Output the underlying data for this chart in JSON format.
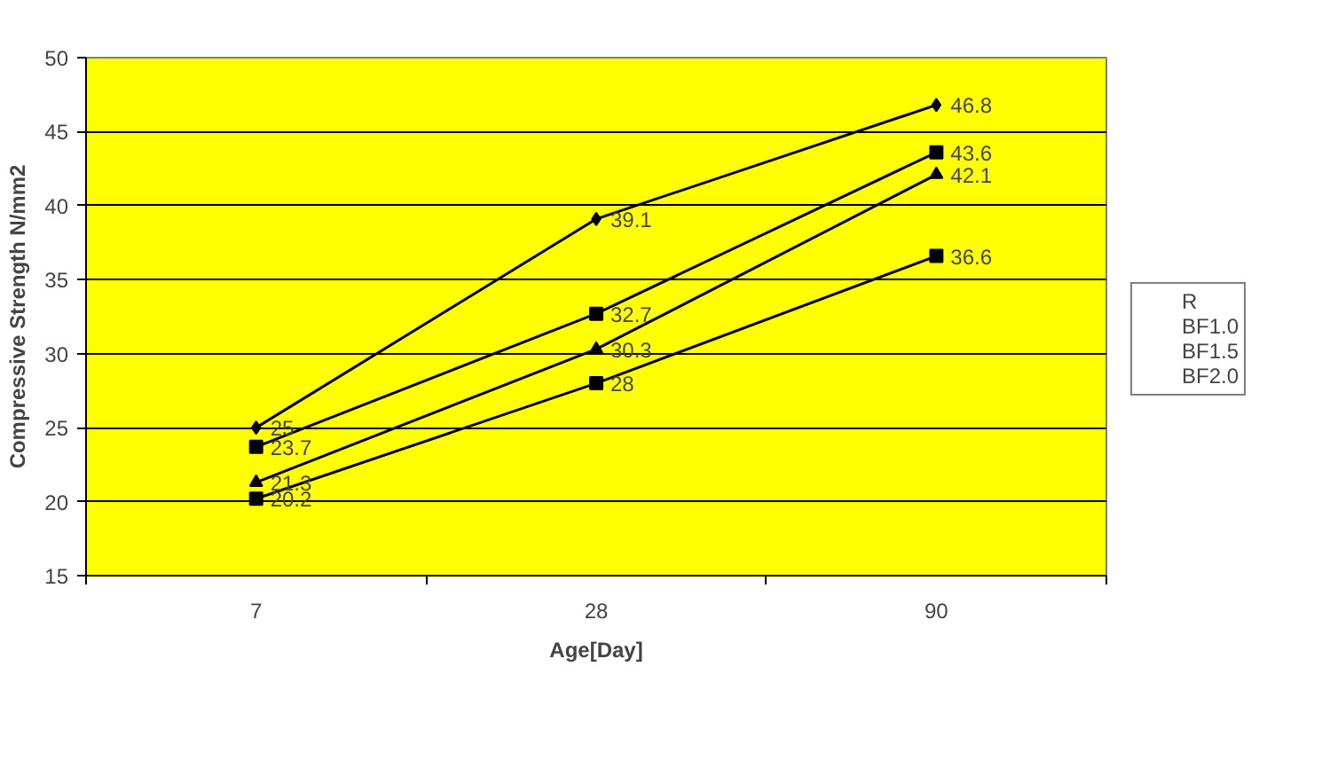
{
  "chart_data": {
    "type": "line",
    "xlabel": "Age[Day]",
    "ylabel": "Compressive Strength N/mm2",
    "categories": [
      "7",
      "28",
      "90"
    ],
    "series": [
      {
        "name": "R",
        "color": "#000000",
        "marker": "diamond",
        "values": [
          25,
          39.1,
          46.8
        ]
      },
      {
        "name": "BF1.0",
        "color": "#000000",
        "marker": "square",
        "values": [
          23.7,
          32.7,
          43.6
        ]
      },
      {
        "name": "BF1.5",
        "color": "#000000",
        "marker": "triangle",
        "values": [
          21.3,
          30.3,
          42.1
        ]
      },
      {
        "name": "BF2.0",
        "color": "#000000",
        "marker": "square",
        "values": [
          20.2,
          28,
          36.6
        ]
      }
    ],
    "ylim": [
      15,
      50
    ],
    "yticks": [
      15,
      20,
      25,
      30,
      35,
      40,
      45,
      50
    ],
    "grid": "y",
    "legend": "right",
    "data_labels": true,
    "line_style": "solid"
  }
}
